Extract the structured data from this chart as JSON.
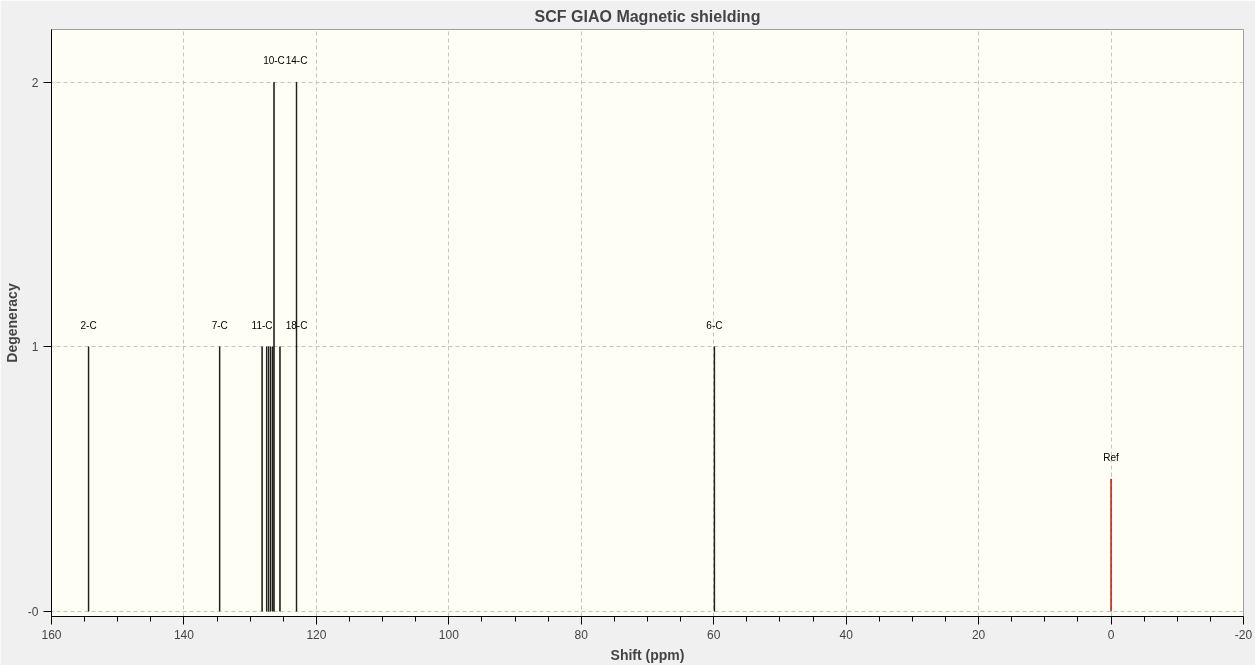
{
  "chart_data": {
    "type": "bar",
    "title": "SCF GIAO Magnetic shielding",
    "xlabel": "Shift (ppm)",
    "ylabel": "Degeneracy",
    "x": [
      154.4,
      134.6,
      128.2,
      127.5,
      127.2,
      126.9,
      126.6,
      126.4,
      125.5,
      123.0,
      59.9,
      0
    ],
    "values": [
      1,
      1,
      1,
      1,
      1,
      1,
      1,
      2,
      1,
      2,
      1,
      0.5
    ],
    "colors": [
      "#000000",
      "#000000",
      "#000000",
      "#000000",
      "#000000",
      "#000000",
      "#000000",
      "#000000",
      "#000000",
      "#000000",
      "#000000",
      "#c00000"
    ],
    "xlim": [
      160,
      -20
    ],
    "ylim": [
      -0.02,
      2.2
    ],
    "xticks": [
      160,
      {
        "value": 155,
        "label": null
      },
      {
        "value": 150,
        "label": null
      },
      {
        "value": 145,
        "label": null
      },
      140,
      {
        "value": 135,
        "label": null
      },
      {
        "value": 130,
        "label": null
      },
      {
        "value": 125,
        "label": null
      },
      120,
      {
        "value": 115,
        "label": null
      },
      {
        "value": 110,
        "label": null
      },
      {
        "value": 105,
        "label": null
      },
      100,
      {
        "value": 95,
        "label": null
      },
      {
        "value": 90,
        "label": null
      },
      {
        "value": 85,
        "label": null
      },
      80,
      {
        "value": 75,
        "label": null
      },
      {
        "value": 70,
        "label": null
      },
      {
        "value": 65,
        "label": null
      },
      60,
      {
        "value": 55,
        "label": null
      },
      {
        "value": 50,
        "label": null
      },
      {
        "value": 45,
        "label": null
      },
      40,
      {
        "value": 35,
        "label": null
      },
      {
        "value": 30,
        "label": null
      },
      {
        "value": 25,
        "label": null
      },
      20,
      {
        "value": 15,
        "label": null
      },
      {
        "value": 10,
        "label": null
      },
      {
        "value": 5,
        "label": null
      },
      0,
      {
        "value": -5,
        "label": null
      },
      {
        "value": -10,
        "label": null
      },
      {
        "value": -15,
        "label": null
      },
      -20
    ],
    "yticks": [
      {
        "value": 0,
        "label": "-0"
      },
      1,
      2
    ],
    "grid": true,
    "annotations": [
      {
        "text": "2-C",
        "x": 154.4,
        "y": 1
      },
      {
        "text": "7-C",
        "x": 134.6,
        "y": 1
      },
      {
        "text": "11-C",
        "x": 128.2,
        "y": 1
      },
      {
        "text": "10-C",
        "x": 126.4,
        "y": 2
      },
      {
        "text": "14-C",
        "x": 123.0,
        "y": 2
      },
      {
        "text": "18-C",
        "x": 123.0,
        "y": 1
      },
      {
        "text": "6-C",
        "x": 59.9,
        "y": 1
      },
      {
        "text": "Ref",
        "x": 0,
        "y": 0.5
      }
    ]
  }
}
